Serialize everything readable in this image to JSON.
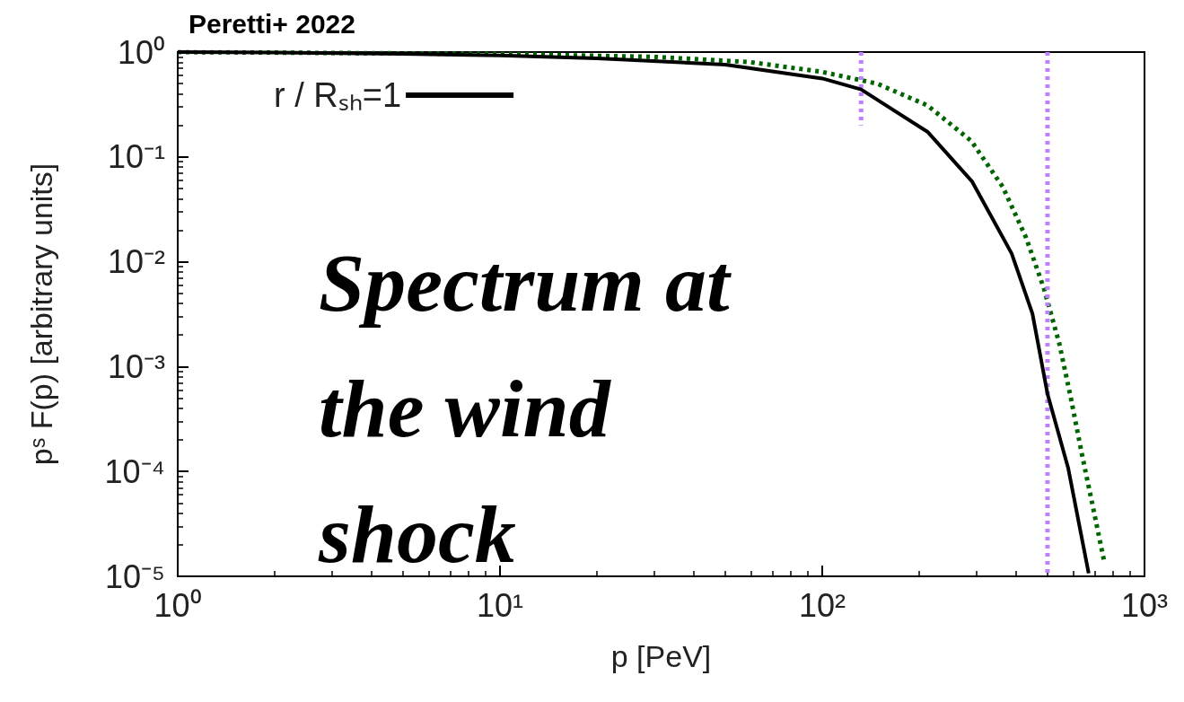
{
  "chart_data": {
    "type": "line",
    "title": "Peretti+ 2022",
    "xlabel": "p [PeV]",
    "ylabel": "pˢ F(p) [arbitrary units]",
    "log": "xy",
    "xlim": [
      1,
      1000
    ],
    "xticks": [
      {
        "value": 1,
        "label": "10⁰"
      },
      {
        "value": 10,
        "label": "10¹"
      },
      {
        "value": 100,
        "label": "10²"
      },
      {
        "value": 1000,
        "label": "10³"
      }
    ],
    "ylim": [
      1e-05,
      1
    ],
    "yticks": [
      {
        "value": 1e-05,
        "label": "10⁻⁵"
      },
      {
        "value": 0.0001,
        "label": "10⁻⁴"
      },
      {
        "value": 0.001,
        "label": "10⁻³"
      },
      {
        "value": 0.01,
        "label": "10⁻²"
      },
      {
        "value": 0.1,
        "label": "10⁻¹"
      },
      {
        "value": 1,
        "label": "10⁰"
      }
    ],
    "legend": "top left",
    "annotations": [
      "Spectrum at the wind shock"
    ],
    "series": [
      {
        "name": "r / Rₛₕ=1",
        "color": "#000000",
        "line_style": "solid",
        "x": [
          1,
          2,
          5,
          10,
          20,
          50,
          100,
          132,
          212,
          292,
          387,
          449,
          500,
          580,
          671
        ],
        "values": [
          1,
          0.99,
          0.96,
          0.93,
          0.87,
          0.76,
          0.56,
          0.44,
          0.174,
          0.058,
          0.012,
          0.0032,
          0.00055,
          0.000107,
          1.07e-05
        ]
      },
      {
        "color": "#006400",
        "line_style": "dotted",
        "x": [
          1,
          10,
          30,
          60,
          99,
          148,
          212,
          290,
          363,
          429,
          488,
          544,
          591,
          638,
          693,
          750
        ],
        "values": [
          1,
          0.96,
          0.9,
          0.8,
          0.65,
          0.5,
          0.31,
          0.142,
          0.052,
          0.017,
          0.0055,
          0.00166,
          0.0005,
          0.000151,
          4.47e-05,
          1.38e-05
        ]
      },
      {
        "color": "#bf80ff",
        "line_style": "dotted",
        "x": [
          132,
          132
        ],
        "values": [
          1,
          0.2
        ]
      },
      {
        "color": "#bf80ff",
        "line_style": "dotted",
        "x": [
          500,
          500
        ],
        "values": [
          1,
          1e-05
        ]
      }
    ]
  }
}
